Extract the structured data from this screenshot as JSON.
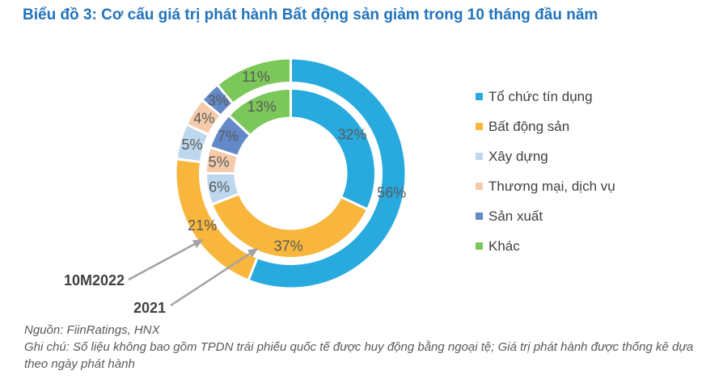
{
  "title": "Biểu đồ 3: Cơ cấu giá trị phát hành Bất động sản giảm trong 10 tháng đầu năm",
  "chart_data": {
    "type": "donut",
    "variant": "nested-two-rings",
    "categories": [
      "Tổ chức tín dụng",
      "Bất động sản",
      "Xây dựng",
      "Thương mại, dịch vụ",
      "Sản xuất",
      "Khác"
    ],
    "colors": [
      "#29AADF",
      "#F8B63C",
      "#BDD7EE",
      "#F6CBAB",
      "#6389C8",
      "#7BC75A"
    ],
    "series": [
      {
        "name": "10M2022",
        "ring": "outer",
        "values": [
          56,
          21,
          5,
          4,
          3,
          11
        ]
      },
      {
        "name": "2021",
        "ring": "inner",
        "values": [
          32,
          37,
          6,
          5,
          7,
          13
        ]
      }
    ],
    "value_suffix": "%",
    "start_angle_deg": 0,
    "direction": "clockwise",
    "legend_position": "right",
    "label_color": "#595959",
    "slice_border_color": "#ffffff"
  },
  "annotations": [
    {
      "label": "10M2022",
      "target": "outer-ring-bat-dong-san-21"
    },
    {
      "label": "2021",
      "target": "inner-ring-bat-dong-san-37"
    }
  ],
  "footer": {
    "source": "Nguồn: FiinRatings, HNX",
    "note": "Ghi chú: Số liệu không bao gồm TPDN trái phiếu quốc tế được huy động bằng ngoại tệ; Giá trị phát hành được thống kê dựa theo ngày phát hành"
  }
}
